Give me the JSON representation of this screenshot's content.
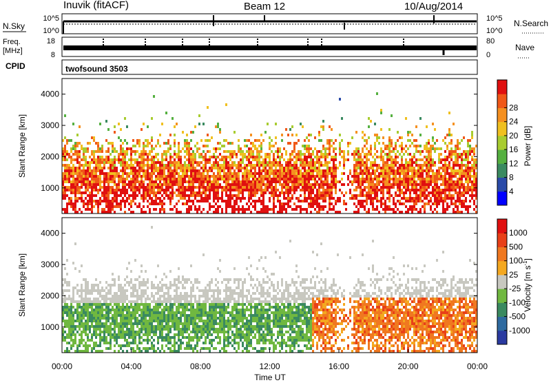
{
  "header": {
    "station": "Inuvik (fitACF)",
    "beam": "Beam 12",
    "date": "10/Aug/2014"
  },
  "top_panels": {
    "nsky_label": "N.Sky",
    "nsky_ticks": [
      "10^5",
      "10^0"
    ],
    "nsearch_label": "N.Search",
    "nsearch_ticks": [
      "10^5",
      "10^0"
    ],
    "freq_label_line1": "Freq.",
    "freq_label_line2": "[MHz]",
    "freq_ticks": [
      "18",
      "8"
    ],
    "nave_label": "Nave",
    "nave_ticks": [
      "80",
      "0"
    ],
    "cpid_label": "CPID",
    "cpid_value": "twofsound 3503"
  },
  "chart_data": [
    {
      "type": "heatmap",
      "panel": "power",
      "ylabel": "Slant Range [km]",
      "y_ticks": [
        "1000",
        "2000",
        "3000",
        "4000"
      ],
      "ylim": [
        180,
        4500
      ],
      "colorbar_label": "Power [dB]",
      "colorbar_ticks": [
        "4",
        "8",
        "12",
        "16",
        "20",
        "24",
        "28"
      ],
      "colorbar_colors": [
        "#0000ff",
        "#2a4aa8",
        "#3a8a60",
        "#55b040",
        "#a8cc30",
        "#f0c020",
        "#f59020",
        "#f05818",
        "#e01010"
      ],
      "grid": false
    },
    {
      "type": "heatmap",
      "panel": "velocity",
      "ylabel": "Slant Range [km]",
      "y_ticks": [
        "1000",
        "2000",
        "3000",
        "4000"
      ],
      "ylim": [
        180,
        4500
      ],
      "xlabel": "Time UT",
      "x_ticks": [
        "00:00",
        "04:00",
        "08:00",
        "12:00",
        "16:00",
        "20:00",
        "00:00"
      ],
      "colorbar_label": "Velocity [m s",
      "colorbar_label_sup": "-1",
      "colorbar_label_end": "]",
      "colorbar_ticks": [
        "1000",
        "500",
        "100",
        "25",
        "-25",
        "-100",
        "-500",
        "-1000"
      ],
      "colorbar_colors": [
        "#2a3aa0",
        "#2e6aa0",
        "#3a8a60",
        "#70b840",
        "#c8c8c0",
        "#f4a820",
        "#f07820",
        "#e84018",
        "#e01010"
      ],
      "grid": false
    }
  ]
}
